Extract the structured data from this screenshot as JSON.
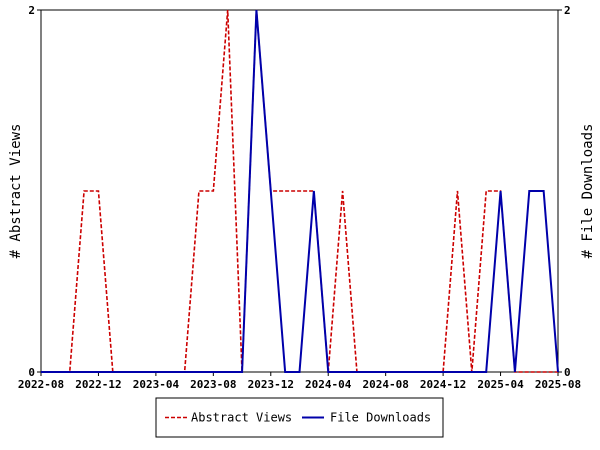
{
  "chart_data": {
    "type": "line",
    "title": "",
    "xlabel": "",
    "ylabel_left": "# Abstract Views",
    "ylabel_right": "# File Downloads",
    "x_range": [
      "2022-08",
      "2025-08"
    ],
    "ylim_left": [
      0,
      2
    ],
    "ylim_right": [
      0,
      2
    ],
    "x_ticks": [
      "2022-08",
      "2022-12",
      "2023-04",
      "2023-08",
      "2023-12",
      "2024-04",
      "2024-08",
      "2024-12",
      "2025-04",
      "2025-08"
    ],
    "y_ticks_left": [
      "0",
      "2"
    ],
    "y_ticks_right": [
      "0",
      "2"
    ],
    "grid": false,
    "legend_position": "bottom",
    "series": [
      {
        "name": "Abstract Views",
        "color": "#cc0000",
        "style": "dashed",
        "axis": "left",
        "points": [
          [
            "2022-08",
            0
          ],
          [
            "2022-09",
            0
          ],
          [
            "2022-10",
            0
          ],
          [
            "2022-11",
            1
          ],
          [
            "2022-12",
            1
          ],
          [
            "2023-01",
            0
          ],
          [
            "2023-02",
            0
          ],
          [
            "2023-03",
            0
          ],
          [
            "2023-04",
            0
          ],
          [
            "2023-05",
            0
          ],
          [
            "2023-06",
            0
          ],
          [
            "2023-07",
            1
          ],
          [
            "2023-08",
            1
          ],
          [
            "2023-09",
            2
          ],
          [
            "2023-10",
            0
          ],
          [
            "2023-11",
            2
          ],
          [
            "2023-12",
            1
          ],
          [
            "2024-01",
            1
          ],
          [
            "2024-02",
            1
          ],
          [
            "2024-03",
            1
          ],
          [
            "2024-04",
            0
          ],
          [
            "2024-05",
            1
          ],
          [
            "2024-06",
            0
          ],
          [
            "2024-07",
            0
          ],
          [
            "2024-08",
            0
          ],
          [
            "2024-09",
            0
          ],
          [
            "2024-10",
            0
          ],
          [
            "2024-11",
            0
          ],
          [
            "2024-12",
            0
          ],
          [
            "2025-01",
            1
          ],
          [
            "2025-02",
            0
          ],
          [
            "2025-03",
            1
          ],
          [
            "2025-04",
            1
          ],
          [
            "2025-05",
            0
          ],
          [
            "2025-06",
            0
          ],
          [
            "2025-07",
            0
          ],
          [
            "2025-08",
            0
          ]
        ]
      },
      {
        "name": "File Downloads",
        "color": "#0000aa",
        "style": "solid",
        "axis": "right",
        "points": [
          [
            "2022-08",
            0
          ],
          [
            "2022-09",
            0
          ],
          [
            "2022-10",
            0
          ],
          [
            "2022-11",
            0
          ],
          [
            "2022-12",
            0
          ],
          [
            "2023-01",
            0
          ],
          [
            "2023-02",
            0
          ],
          [
            "2023-03",
            0
          ],
          [
            "2023-04",
            0
          ],
          [
            "2023-05",
            0
          ],
          [
            "2023-06",
            0
          ],
          [
            "2023-07",
            0
          ],
          [
            "2023-08",
            0
          ],
          [
            "2023-09",
            0
          ],
          [
            "2023-10",
            0
          ],
          [
            "2023-11",
            2
          ],
          [
            "2023-12",
            1
          ],
          [
            "2024-01",
            0
          ],
          [
            "2024-02",
            0
          ],
          [
            "2024-03",
            1
          ],
          [
            "2024-04",
            0
          ],
          [
            "2024-05",
            0
          ],
          [
            "2024-06",
            0
          ],
          [
            "2024-07",
            0
          ],
          [
            "2024-08",
            0
          ],
          [
            "2024-09",
            0
          ],
          [
            "2024-10",
            0
          ],
          [
            "2024-11",
            0
          ],
          [
            "2024-12",
            0
          ],
          [
            "2025-01",
            0
          ],
          [
            "2025-02",
            0
          ],
          [
            "2025-03",
            0
          ],
          [
            "2025-04",
            1
          ],
          [
            "2025-05",
            0
          ],
          [
            "2025-06",
            1
          ],
          [
            "2025-07",
            1
          ],
          [
            "2025-08",
            0
          ]
        ]
      }
    ]
  }
}
